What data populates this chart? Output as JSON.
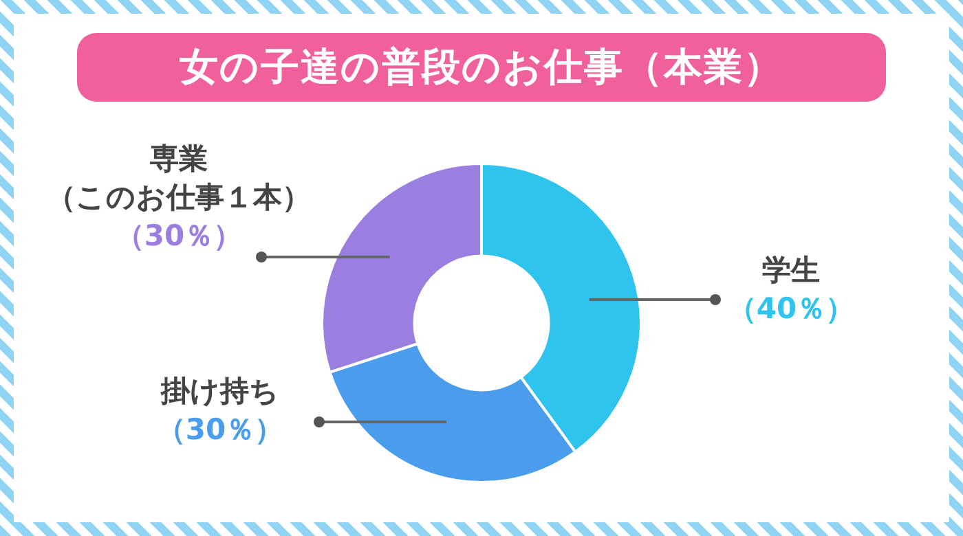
{
  "chart_data": {
    "type": "donut",
    "title": "女の子達の普段のお仕事（本業）",
    "categories": [
      "学生",
      "掛け持ち",
      "専業（このお仕事１本）"
    ],
    "values": [
      40,
      30,
      30
    ],
    "colors": [
      "#2ec4ee",
      "#4a9ded",
      "#9b7fe0"
    ],
    "value_labels": [
      "（40％）",
      "（30％）",
      "（30％）"
    ],
    "legend": false
  }
}
